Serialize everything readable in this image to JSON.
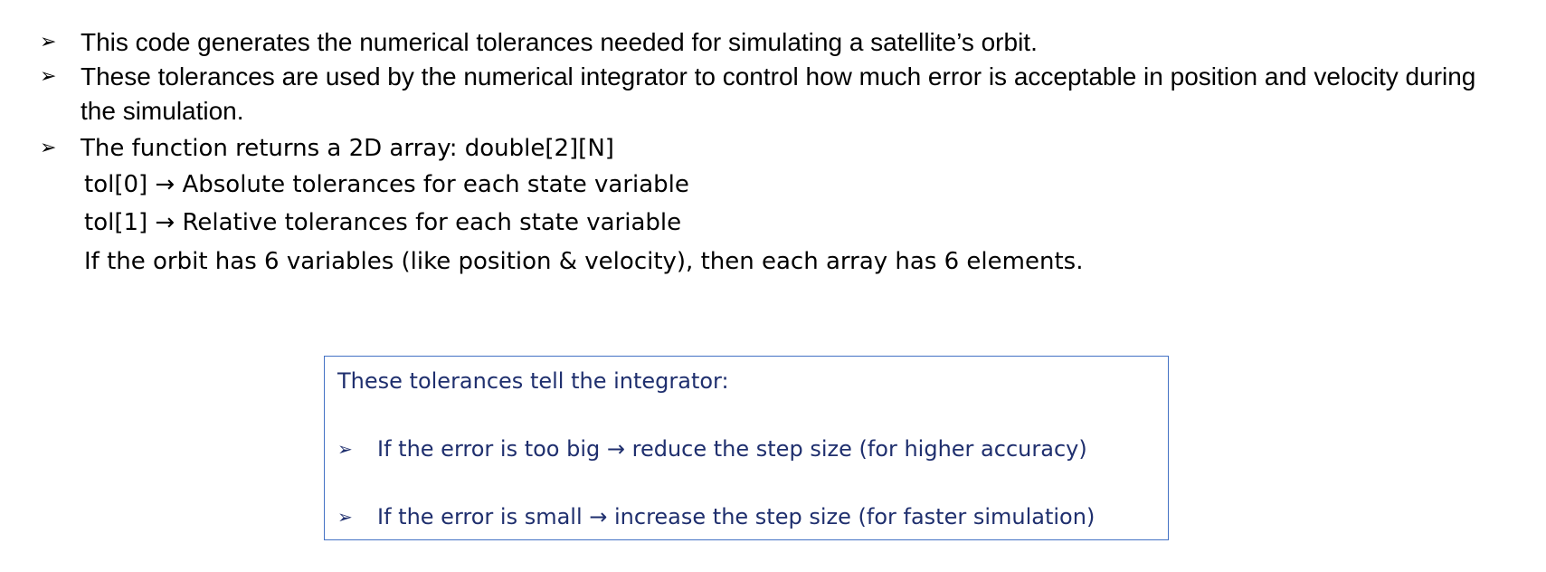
{
  "bullets": [
    {
      "text": "This code generates the numerical tolerances needed for simulating a satellite’s orbit."
    },
    {
      "text": "These tolerances are used by the numerical integrator to control how much error is acceptable in position and velocity during the simulation."
    },
    {
      "text": "The function returns a 2D array: double[2][N]"
    }
  ],
  "sub_lines": [
    "tol[0] → Absolute tolerances for each state variable",
    "tol[1] → Relative tolerances for each state variable",
    "If the orbit has 6 variables (like position & velocity), then each array has 6 elements."
  ],
  "bullet_icon": "arrowhead-bullet-icon",
  "callout": {
    "title": "These tolerances tell the integrator:",
    "items": [
      "If the error is too big → reduce the step size (for higher accuracy)",
      "If the error is small → increase the step size (for faster simulation)"
    ],
    "border_color": "#4472c4",
    "text_color": "#1f2f6e"
  }
}
